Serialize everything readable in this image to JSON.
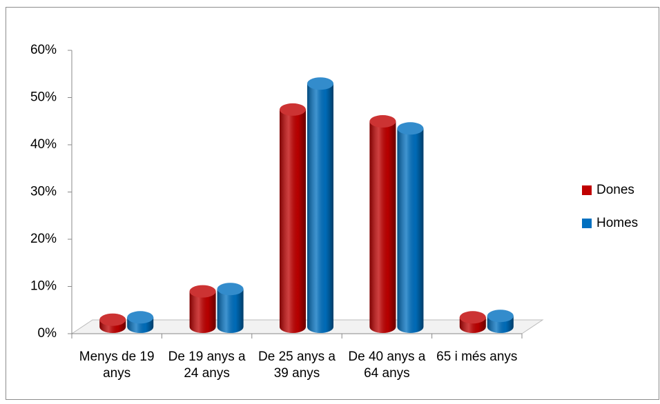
{
  "chart_data": {
    "type": "bar",
    "categories": [
      "Menys de 19 anys",
      "De 19 anys a 24 anys",
      "De 25 anys a 39 anys",
      "De 40 anys a 64 anys",
      "65 i més anys"
    ],
    "series": [
      {
        "name": "Dones",
        "color": "#c00000",
        "values": [
          1.5,
          7.5,
          46,
          43.5,
          2
        ]
      },
      {
        "name": "Homes",
        "color": "#0070c0",
        "values": [
          2,
          8,
          51.5,
          42,
          2.3
        ]
      }
    ],
    "ylim": [
      0,
      60
    ],
    "yticks": [
      {
        "value": 0,
        "label": "0%"
      },
      {
        "value": 10,
        "label": "10%"
      },
      {
        "value": 20,
        "label": "20%"
      },
      {
        "value": 30,
        "label": "30%"
      },
      {
        "value": 40,
        "label": "40%"
      },
      {
        "value": 50,
        "label": "50%"
      },
      {
        "value": 60,
        "label": "60%"
      }
    ],
    "legend": "right"
  }
}
